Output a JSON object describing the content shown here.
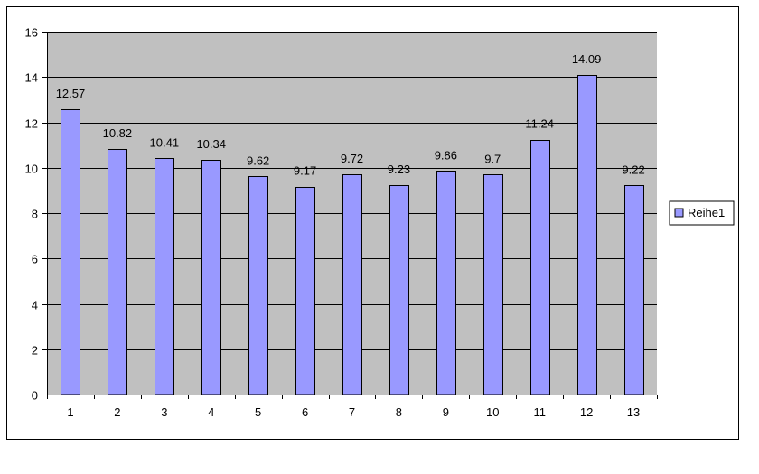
{
  "chart_data": {
    "type": "bar",
    "categories": [
      "1",
      "2",
      "3",
      "4",
      "5",
      "6",
      "7",
      "8",
      "9",
      "10",
      "11",
      "12",
      "13"
    ],
    "series": [
      {
        "name": "Reihe1",
        "values": [
          12.57,
          10.82,
          10.41,
          10.34,
          9.62,
          9.17,
          9.72,
          9.23,
          9.86,
          9.7,
          11.24,
          14.09,
          9.22
        ],
        "data_labels": [
          "12.57",
          "10.82",
          "10.41",
          "10.34",
          "9.62",
          "9.17",
          "9.72",
          "9.23",
          "9.86",
          "9.7",
          "11.24",
          "14.09",
          "9.22"
        ]
      }
    ],
    "title": "",
    "xlabel": "",
    "ylabel": "",
    "ylim": [
      0,
      16
    ],
    "yticks": [
      "0",
      "2",
      "4",
      "6",
      "8",
      "10",
      "12",
      "14",
      "16"
    ],
    "ytick_values": [
      0,
      2,
      4,
      6,
      8,
      10,
      12,
      14,
      16
    ],
    "grid": true,
    "legend": "right",
    "colors": {
      "plot_background": "#c0c0c0",
      "bar_fill": "#9999ff",
      "bar_stroke": "#000000",
      "gridline": "#000000"
    }
  }
}
